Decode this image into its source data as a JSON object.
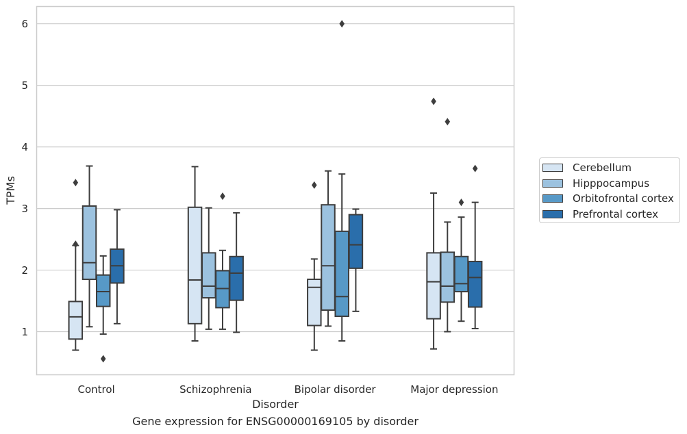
{
  "chart_data": {
    "type": "boxplot",
    "caption": "Gene expression for ENSG00000169105 by disorder",
    "xlabel": "Disorder",
    "ylabel": "TPMs",
    "ylim": [
      0.3,
      6.28
    ],
    "yticks": [
      1,
      2,
      3,
      4,
      5,
      6
    ],
    "grid": true,
    "legend_position": "right",
    "categories": [
      "Control",
      "Schizophrenia",
      "Bipolar disorder",
      "Major depression"
    ],
    "series": [
      {
        "name": "Cerebellum",
        "color": "#d6e5f3",
        "boxes": [
          {
            "whislo": 0.7,
            "q1": 0.88,
            "med": 1.24,
            "q3": 1.49,
            "whishi": 2.4,
            "fliers": [
              2.42,
              3.42
            ]
          },
          {
            "whislo": 0.85,
            "q1": 1.13,
            "med": 1.84,
            "q3": 3.02,
            "whishi": 3.68,
            "fliers": []
          },
          {
            "whislo": 0.7,
            "q1": 1.1,
            "med": 1.72,
            "q3": 1.85,
            "whishi": 2.18,
            "fliers": [
              3.38
            ]
          },
          {
            "whislo": 0.72,
            "q1": 1.21,
            "med": 1.81,
            "q3": 2.28,
            "whishi": 3.25,
            "fliers": [
              4.74
            ]
          }
        ]
      },
      {
        "name": "Hipppocampus",
        "color": "#9cc2df",
        "boxes": [
          {
            "whislo": 1.08,
            "q1": 1.85,
            "med": 2.12,
            "q3": 3.04,
            "whishi": 3.69,
            "fliers": []
          },
          {
            "whislo": 1.04,
            "q1": 1.55,
            "med": 1.74,
            "q3": 2.28,
            "whishi": 3.01,
            "fliers": []
          },
          {
            "whislo": 1.09,
            "q1": 1.35,
            "med": 2.07,
            "q3": 3.06,
            "whishi": 3.61,
            "fliers": []
          },
          {
            "whislo": 1.0,
            "q1": 1.48,
            "med": 1.74,
            "q3": 2.29,
            "whishi": 2.78,
            "fliers": [
              4.41
            ]
          }
        ]
      },
      {
        "name": "Orbitofrontal cortex",
        "color": "#5799c7",
        "boxes": [
          {
            "whislo": 0.96,
            "q1": 1.41,
            "med": 1.65,
            "q3": 1.92,
            "whishi": 2.23,
            "fliers": [
              0.56
            ]
          },
          {
            "whislo": 1.04,
            "q1": 1.39,
            "med": 1.7,
            "q3": 1.99,
            "whishi": 2.32,
            "fliers": [
              3.2
            ]
          },
          {
            "whislo": 0.85,
            "q1": 1.25,
            "med": 1.57,
            "q3": 2.63,
            "whishi": 3.56,
            "fliers": [
              6.0
            ]
          },
          {
            "whislo": 1.17,
            "q1": 1.65,
            "med": 1.78,
            "q3": 2.22,
            "whishi": 2.86,
            "fliers": [
              3.1
            ]
          }
        ]
      },
      {
        "name": "Prefrontal cortex",
        "color": "#2a6eab",
        "boxes": [
          {
            "whislo": 1.13,
            "q1": 1.79,
            "med": 2.07,
            "q3": 2.34,
            "whishi": 2.98,
            "fliers": []
          },
          {
            "whislo": 0.99,
            "q1": 1.51,
            "med": 1.95,
            "q3": 2.22,
            "whishi": 2.93,
            "fliers": []
          },
          {
            "whislo": 1.33,
            "q1": 2.03,
            "med": 2.41,
            "q3": 2.9,
            "whishi": 2.99,
            "fliers": []
          },
          {
            "whislo": 1.05,
            "q1": 1.4,
            "med": 1.88,
            "q3": 2.14,
            "whishi": 3.1,
            "fliers": [
              3.65
            ]
          }
        ]
      }
    ]
  },
  "colors": {
    "grid": "#cccccc",
    "frame": "#cccccc",
    "box_edge": "#3d3d3d"
  }
}
